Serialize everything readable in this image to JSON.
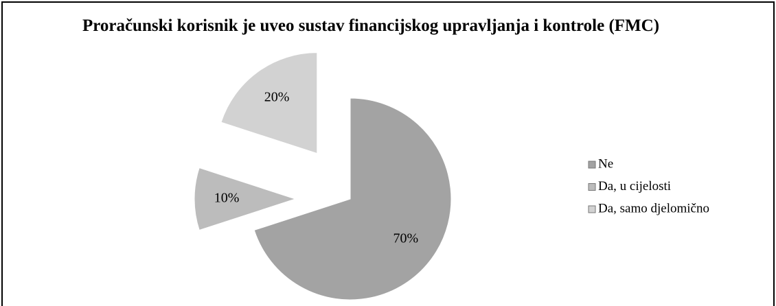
{
  "chart_data": {
    "type": "pie",
    "title": "Proračunski korisnik je uveo sustav financijskog upravljanja i kontrole (FMC)",
    "categories": [
      "Ne",
      "Da, u cijelosti",
      "Da, samo djelomično"
    ],
    "values": [
      70,
      10,
      20
    ],
    "value_labels": [
      "70%",
      "10%",
      "20%"
    ],
    "colors": [
      "#a3a3a3",
      "#bcbcbc",
      "#d2d2d2"
    ],
    "legend": "right"
  }
}
